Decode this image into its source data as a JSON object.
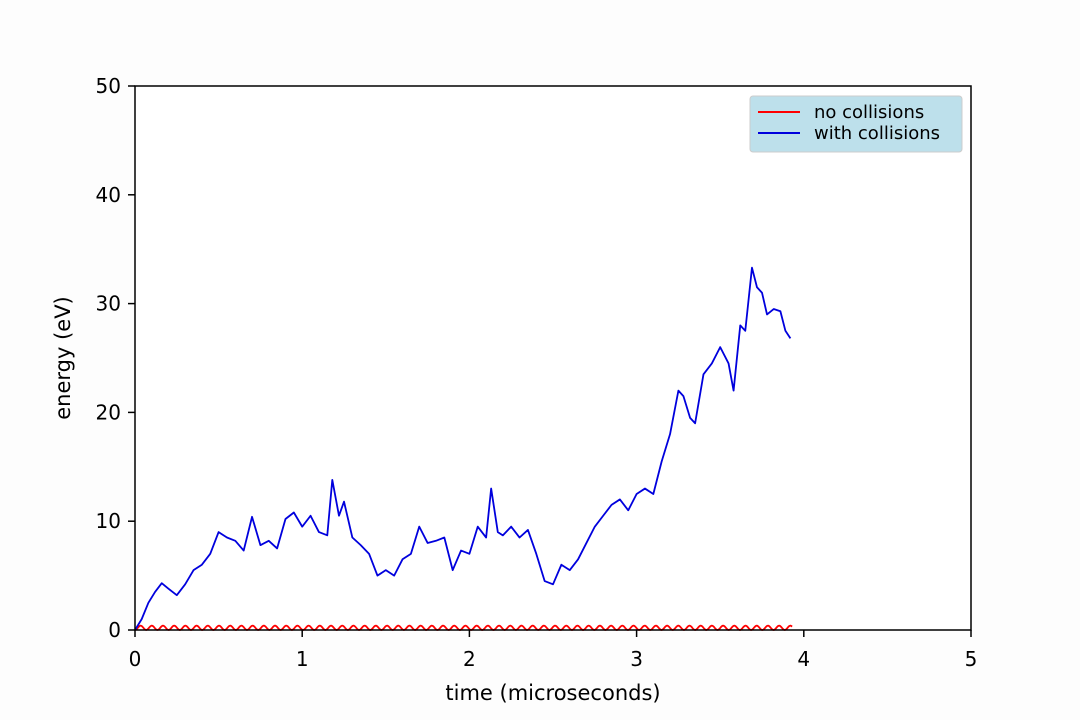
{
  "chart_data": {
    "type": "line",
    "title": "",
    "xlabel": "time (microseconds)",
    "ylabel": "energy (eV)",
    "xlim": [
      0,
      5
    ],
    "ylim": [
      0,
      50
    ],
    "xticks": [
      "0",
      "1",
      "2",
      "3",
      "4",
      "5"
    ],
    "yticks": [
      "0",
      "10",
      "20",
      "30",
      "40",
      "50"
    ],
    "grid": false,
    "legend_position": "top-right",
    "series": [
      {
        "name": "no collisions",
        "color": "#ff0000",
        "style": "oscillation",
        "x_range": [
          0,
          3.93
        ],
        "amplitude_ev": 0.4,
        "period_us": 0.067
      },
      {
        "name": "with collisions",
        "color": "#0000dd",
        "x": [
          0,
          0.04,
          0.08,
          0.12,
          0.16,
          0.2,
          0.25,
          0.3,
          0.35,
          0.4,
          0.45,
          0.5,
          0.55,
          0.6,
          0.65,
          0.7,
          0.75,
          0.8,
          0.85,
          0.9,
          0.95,
          1.0,
          1.05,
          1.1,
          1.15,
          1.18,
          1.22,
          1.25,
          1.3,
          1.35,
          1.4,
          1.45,
          1.5,
          1.55,
          1.6,
          1.65,
          1.7,
          1.75,
          1.8,
          1.85,
          1.9,
          1.95,
          2.0,
          2.05,
          2.1,
          2.13,
          2.17,
          2.2,
          2.25,
          2.3,
          2.35,
          2.4,
          2.45,
          2.5,
          2.55,
          2.6,
          2.65,
          2.7,
          2.75,
          2.8,
          2.85,
          2.9,
          2.95,
          3.0,
          3.05,
          3.1,
          3.15,
          3.2,
          3.25,
          3.28,
          3.32,
          3.35,
          3.4,
          3.45,
          3.5,
          3.55,
          3.58,
          3.62,
          3.65,
          3.69,
          3.72,
          3.75,
          3.78,
          3.82,
          3.86,
          3.89,
          3.92
        ],
        "y": [
          0,
          1.0,
          2.5,
          3.5,
          4.3,
          3.8,
          3.2,
          4.2,
          5.5,
          6.0,
          7.0,
          9.0,
          8.5,
          8.2,
          7.3,
          10.4,
          7.8,
          8.2,
          7.5,
          10.2,
          10.8,
          9.5,
          10.5,
          9.0,
          8.7,
          13.8,
          10.5,
          11.8,
          8.5,
          7.8,
          7.0,
          5.0,
          5.5,
          5.0,
          6.5,
          7.0,
          9.5,
          8.0,
          8.2,
          8.5,
          5.5,
          7.3,
          7.0,
          9.5,
          8.5,
          13.0,
          9.0,
          8.7,
          9.5,
          8.5,
          9.2,
          7.0,
          4.5,
          4.2,
          6.0,
          5.5,
          6.5,
          8.0,
          9.5,
          10.5,
          11.5,
          12.0,
          11.0,
          12.5,
          13.0,
          12.5,
          15.5,
          18.0,
          22.0,
          21.5,
          19.5,
          19.0,
          23.5,
          24.5,
          26.0,
          24.5,
          22.0,
          28.0,
          27.5,
          33.3,
          31.5,
          31.0,
          29.0,
          29.5,
          29.3,
          27.5,
          26.8
        ]
      }
    ]
  }
}
